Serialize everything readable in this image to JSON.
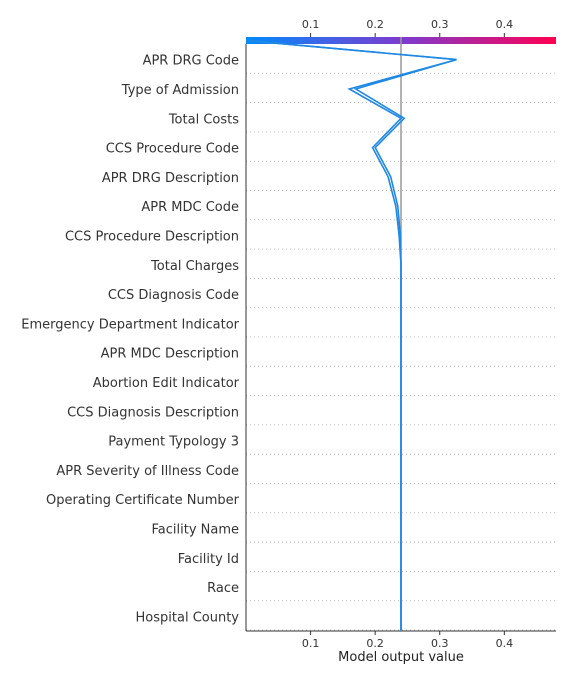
{
  "chart_data": {
    "type": "line",
    "title": "",
    "xlabel": "Model output value",
    "ylabel": "",
    "xlim": [
      0.0,
      0.48
    ],
    "x_ticks": [
      0.1,
      0.2,
      0.3,
      0.4
    ],
    "x_tick_labels": [
      "0.1",
      "0.2",
      "0.3",
      "0.4"
    ],
    "base_value": 0.24,
    "features": [
      "APR DRG Code",
      "Type of Admission",
      "Total Costs",
      "CCS Procedure Code",
      "APR DRG Description",
      "APR MDC Code",
      "CCS Procedure Description",
      "Total Charges",
      "CCS Diagnosis Code",
      "Emergency Department Indicator",
      "APR MDC Description",
      "Abortion Edit Indicator",
      "CCS Diagnosis Description",
      "Payment Typology 3",
      "APR Severity of Illness Code",
      "Operating Certificate Number",
      "Facility Name",
      "Facility Id",
      "Race",
      "Hospital County"
    ],
    "decision_path": {
      "name": "",
      "values": [
        0.0,
        0.326,
        0.16,
        0.24,
        0.196,
        0.22,
        0.232,
        0.237,
        0.24,
        0.24,
        0.24,
        0.24,
        0.24,
        0.24,
        0.24,
        0.24,
        0.24,
        0.24,
        0.24,
        0.24,
        0.24
      ]
    },
    "decision_path_2": {
      "name": "",
      "values": [
        0.0,
        0.326,
        0.17,
        0.245,
        0.2,
        0.224,
        0.235,
        0.239,
        0.24,
        0.24,
        0.24,
        0.24,
        0.24,
        0.24,
        0.24,
        0.24,
        0.24,
        0.24,
        0.24,
        0.24,
        0.24
      ]
    },
    "colorbar": {
      "low_color": "#008bfb",
      "mid_color": "#7c3ccf",
      "high_color": "#ff0052"
    },
    "line_color": "#1e88e5",
    "base_line_color": "#999999",
    "grid": "dotted horizontal"
  }
}
